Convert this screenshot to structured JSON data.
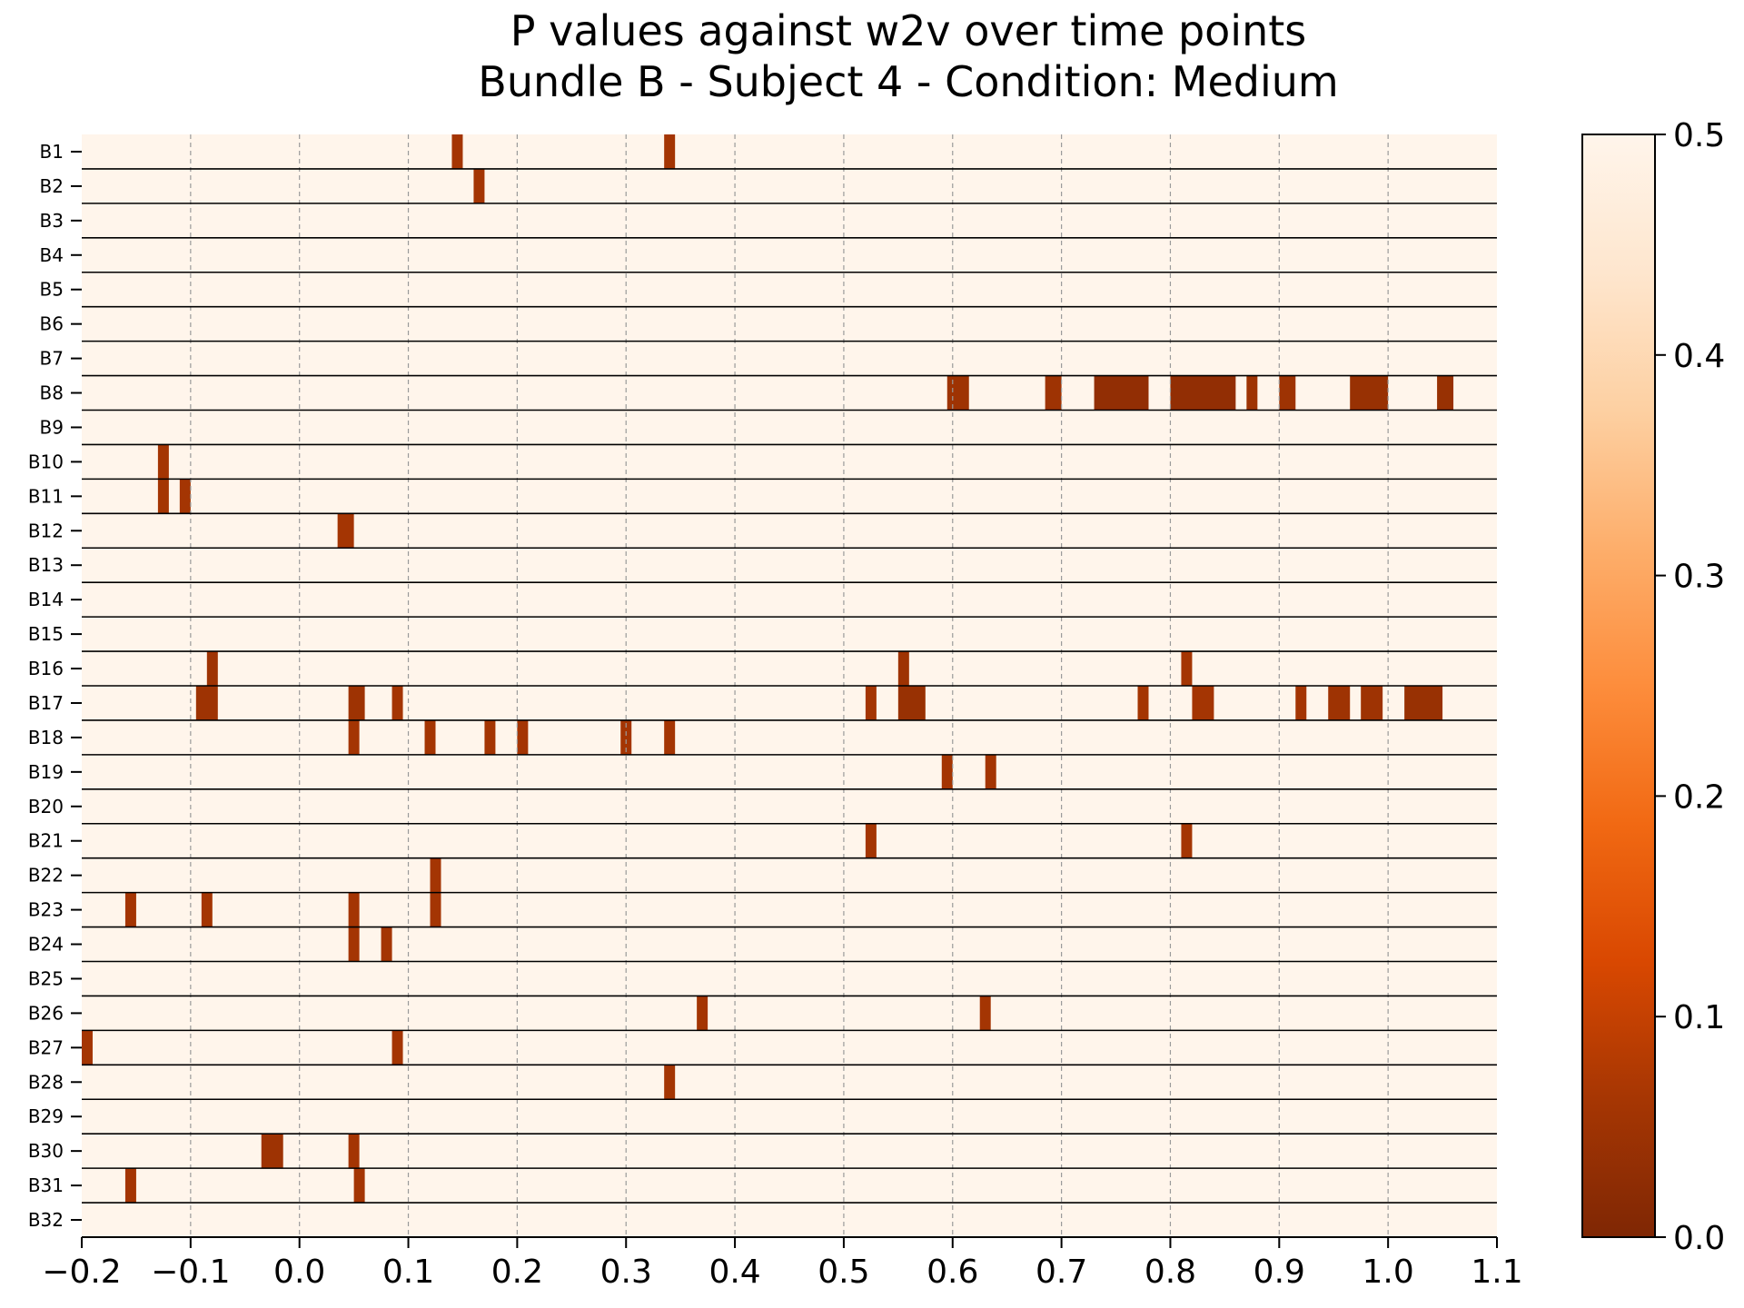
{
  "chart_data": {
    "type": "heatmap",
    "title_line1": "P values against w2v over time points",
    "title_line2": "Bundle B - Subject 4 - Condition: Medium",
    "xlabel": "",
    "ylabel": "",
    "xlim": [
      -0.2,
      1.1
    ],
    "xticks": [
      -0.2,
      -0.1,
      0.0,
      0.1,
      0.2,
      0.3,
      0.4,
      0.5,
      0.6,
      0.7,
      0.8,
      0.9,
      1.0,
      1.1
    ],
    "xtick_labels": [
      "−0.2",
      "−0.1",
      "0.0",
      "0.1",
      "0.2",
      "0.3",
      "0.4",
      "0.5",
      "0.6",
      "0.7",
      "0.8",
      "0.9",
      "1.0",
      "1.1"
    ],
    "grid": "vertical dashed",
    "rows": [
      "B1",
      "B2",
      "B3",
      "B4",
      "B5",
      "B6",
      "B7",
      "B8",
      "B9",
      "B10",
      "B11",
      "B12",
      "B13",
      "B14",
      "B15",
      "B16",
      "B17",
      "B18",
      "B19",
      "B20",
      "B21",
      "B22",
      "B23",
      "B24",
      "B25",
      "B26",
      "B27",
      "B28",
      "B29",
      "B30",
      "B31",
      "B32"
    ],
    "background_p": 0.5,
    "significant_cells": [
      {
        "row": "B1",
        "t": [
          0.14,
          0.15
        ],
        "p": 0.06
      },
      {
        "row": "B1",
        "t": [
          0.335,
          0.345
        ],
        "p": 0.06
      },
      {
        "row": "B2",
        "t": [
          0.16,
          0.17
        ],
        "p": 0.06
      },
      {
        "row": "B8",
        "t": [
          0.595,
          0.615
        ],
        "p": 0.05
      },
      {
        "row": "B8",
        "t": [
          0.685,
          0.7
        ],
        "p": 0.05
      },
      {
        "row": "B8",
        "t": [
          0.73,
          0.78
        ],
        "p": 0.03
      },
      {
        "row": "B8",
        "t": [
          0.8,
          0.86
        ],
        "p": 0.03
      },
      {
        "row": "B8",
        "t": [
          0.87,
          0.88
        ],
        "p": 0.05
      },
      {
        "row": "B8",
        "t": [
          0.9,
          0.915
        ],
        "p": 0.05
      },
      {
        "row": "B8",
        "t": [
          0.965,
          1.0
        ],
        "p": 0.04
      },
      {
        "row": "B8",
        "t": [
          1.045,
          1.06
        ],
        "p": 0.04
      },
      {
        "row": "B10",
        "t": [
          -0.13,
          -0.12
        ],
        "p": 0.06
      },
      {
        "row": "B11",
        "t": [
          -0.13,
          -0.12
        ],
        "p": 0.06
      },
      {
        "row": "B11",
        "t": [
          -0.11,
          -0.1
        ],
        "p": 0.06
      },
      {
        "row": "B12",
        "t": [
          0.035,
          0.05
        ],
        "p": 0.06
      },
      {
        "row": "B16",
        "t": [
          -0.085,
          -0.075
        ],
        "p": 0.05
      },
      {
        "row": "B16",
        "t": [
          0.55,
          0.56
        ],
        "p": 0.05
      },
      {
        "row": "B16",
        "t": [
          0.81,
          0.82
        ],
        "p": 0.06
      },
      {
        "row": "B17",
        "t": [
          -0.095,
          -0.075
        ],
        "p": 0.05
      },
      {
        "row": "B17",
        "t": [
          0.045,
          0.06
        ],
        "p": 0.05
      },
      {
        "row": "B17",
        "t": [
          0.085,
          0.095
        ],
        "p": 0.06
      },
      {
        "row": "B17",
        "t": [
          0.52,
          0.53
        ],
        "p": 0.06
      },
      {
        "row": "B17",
        "t": [
          0.55,
          0.575
        ],
        "p": 0.04
      },
      {
        "row": "B17",
        "t": [
          0.77,
          0.78
        ],
        "p": 0.06
      },
      {
        "row": "B17",
        "t": [
          0.82,
          0.84
        ],
        "p": 0.06
      },
      {
        "row": "B17",
        "t": [
          0.915,
          0.925
        ],
        "p": 0.06
      },
      {
        "row": "B17",
        "t": [
          0.945,
          0.965
        ],
        "p": 0.05
      },
      {
        "row": "B17",
        "t": [
          0.975,
          0.995
        ],
        "p": 0.05
      },
      {
        "row": "B17",
        "t": [
          1.015,
          1.05
        ],
        "p": 0.04
      },
      {
        "row": "B18",
        "t": [
          0.045,
          0.055
        ],
        "p": 0.06
      },
      {
        "row": "B18",
        "t": [
          0.115,
          0.125
        ],
        "p": 0.06
      },
      {
        "row": "B18",
        "t": [
          0.17,
          0.18
        ],
        "p": 0.06
      },
      {
        "row": "B18",
        "t": [
          0.2,
          0.21
        ],
        "p": 0.06
      },
      {
        "row": "B18",
        "t": [
          0.295,
          0.305
        ],
        "p": 0.06
      },
      {
        "row": "B18",
        "t": [
          0.335,
          0.345
        ],
        "p": 0.06
      },
      {
        "row": "B19",
        "t": [
          0.59,
          0.6
        ],
        "p": 0.06
      },
      {
        "row": "B19",
        "t": [
          0.63,
          0.64
        ],
        "p": 0.06
      },
      {
        "row": "B21",
        "t": [
          0.52,
          0.53
        ],
        "p": 0.06
      },
      {
        "row": "B21",
        "t": [
          0.81,
          0.82
        ],
        "p": 0.06
      },
      {
        "row": "B22",
        "t": [
          0.12,
          0.13
        ],
        "p": 0.06
      },
      {
        "row": "B23",
        "t": [
          -0.16,
          -0.15
        ],
        "p": 0.06
      },
      {
        "row": "B23",
        "t": [
          -0.09,
          -0.08
        ],
        "p": 0.06
      },
      {
        "row": "B23",
        "t": [
          0.045,
          0.055
        ],
        "p": 0.06
      },
      {
        "row": "B23",
        "t": [
          0.12,
          0.13
        ],
        "p": 0.06
      },
      {
        "row": "B24",
        "t": [
          0.045,
          0.055
        ],
        "p": 0.06
      },
      {
        "row": "B24",
        "t": [
          0.075,
          0.085
        ],
        "p": 0.06
      },
      {
        "row": "B26",
        "t": [
          0.365,
          0.375
        ],
        "p": 0.06
      },
      {
        "row": "B26",
        "t": [
          0.625,
          0.635
        ],
        "p": 0.06
      },
      {
        "row": "B27",
        "t": [
          -0.2,
          -0.19
        ],
        "p": 0.06
      },
      {
        "row": "B27",
        "t": [
          0.085,
          0.095
        ],
        "p": 0.06
      },
      {
        "row": "B28",
        "t": [
          0.335,
          0.345
        ],
        "p": 0.06
      },
      {
        "row": "B30",
        "t": [
          -0.035,
          -0.015
        ],
        "p": 0.05
      },
      {
        "row": "B30",
        "t": [
          0.045,
          0.055
        ],
        "p": 0.06
      },
      {
        "row": "B31",
        "t": [
          -0.16,
          -0.15
        ],
        "p": 0.06
      },
      {
        "row": "B31",
        "t": [
          0.05,
          0.06
        ],
        "p": 0.06
      }
    ],
    "colorbar": {
      "range": [
        0.0,
        0.5
      ],
      "ticks": [
        0.0,
        0.1,
        0.2,
        0.3,
        0.4,
        0.5
      ],
      "tick_labels": [
        "0.0",
        "0.1",
        "0.2",
        "0.3",
        "0.4",
        "0.5"
      ],
      "colormap": "Oranges_r",
      "colors": [
        "#7f2704",
        "#a63603",
        "#d94801",
        "#f16913",
        "#fd8d3c",
        "#fdae6b",
        "#fdd0a2",
        "#fee6ce",
        "#fff5eb"
      ]
    }
  }
}
